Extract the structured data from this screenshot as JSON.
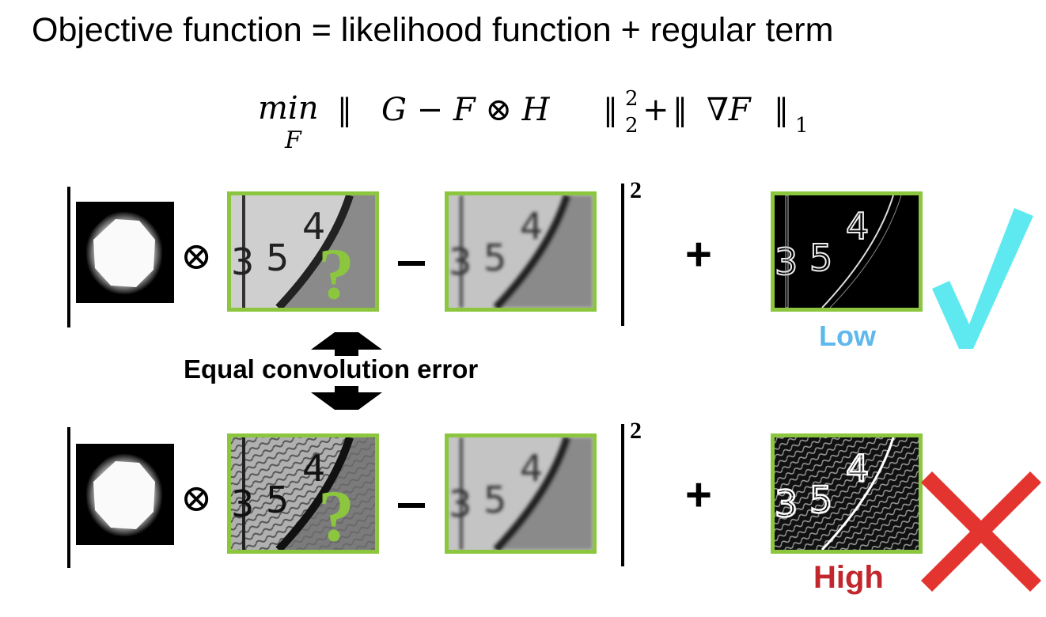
{
  "title": "Objective function = likelihood function + regular term",
  "formula": {
    "min": "min",
    "min_subscript": "F",
    "norm_open": "‖",
    "term1": "G − F ⊗ H",
    "norm_close": "‖",
    "exp_sup": "2",
    "exp_sub": "2",
    "plus": "+",
    "term2": "∇F",
    "sub1": "1"
  },
  "rows": [
    {
      "id": "top",
      "otimes": "⊗",
      "question_mark": "?",
      "minus": "−",
      "square": "2",
      "plus": "+",
      "clock_numbers": "5 4",
      "regular_term_level": "Low",
      "verdict_icon": "checkmark-icon"
    },
    {
      "id": "bottom",
      "otimes": "⊗",
      "question_mark": "?",
      "minus": "−",
      "square": "2",
      "plus": "+",
      "clock_numbers": "5 4",
      "regular_term_level": "High",
      "verdict_icon": "cross-icon"
    }
  ],
  "annotation": "Equal convolution error",
  "colors": {
    "frame_border": "#8cc63f",
    "question_mark": "#8cc63f",
    "low_text": "#5fb8ec",
    "high_text": "#c1272d",
    "checkmark": "#5ee9f1",
    "cross": "#e3342f"
  }
}
